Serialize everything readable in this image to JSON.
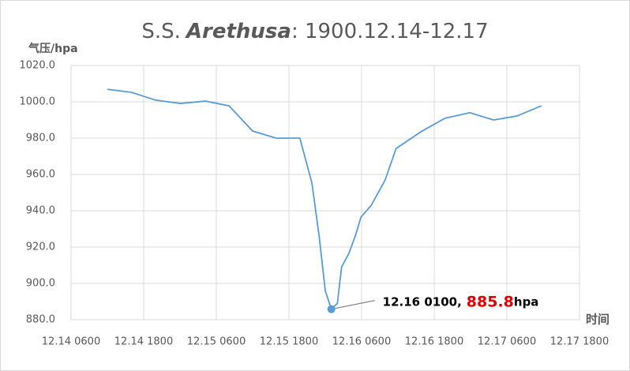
{
  "chart_data": {
    "type": "line",
    "title": {
      "prefix": "S.S.",
      "name": "Arethusa",
      "suffix": ": 1900.12.14-12.17"
    },
    "y_label": "气压/hpa",
    "x_label": "时间",
    "x": [
      12.0,
      16.0,
      20.0,
      24.1,
      28.2,
      32.1,
      36.0,
      39.9,
      43.8,
      45.8,
      47.0,
      48.0,
      49,
      50.0,
      50.7,
      51.9,
      53.0,
      53.9,
      55.6,
      57.9,
      59.7,
      63.8,
      67.8,
      71.9,
      75.8,
      79.7,
      83.7
    ],
    "series": [
      {
        "color": "#5b9bd5",
        "values": [
          1006.9,
          1005.2,
          1000.9,
          999.1,
          1000.4,
          997.8,
          983.9,
          980.0,
          980.0,
          955.2,
          925.7,
          896.0,
          885.8,
          889.0,
          909.0,
          916.5,
          926.5,
          936.5,
          943.0,
          957.0,
          974.3,
          983.5,
          991.0,
          994.0,
          990.0,
          992.2,
          997.8
        ]
      }
    ],
    "annotation": {
      "x": 49,
      "value": 885.8,
      "label": "12.16 0100,",
      "unit": "hpa",
      "color": "#e00000",
      "marker_color": "#5b9bd5"
    },
    "xlim": [
      6,
      90
    ],
    "xticks": [
      {
        "value": 6,
        "label": "12.14 0600"
      },
      {
        "value": 18,
        "label": "12.14 1800"
      },
      {
        "value": 30,
        "label": "12.15 0600"
      },
      {
        "value": 42,
        "label": "12.15 1800"
      },
      {
        "value": 54,
        "label": "12.16 0600"
      },
      {
        "value": 66,
        "label": "12.16 1800"
      },
      {
        "value": 78,
        "label": "12.17 0600"
      },
      {
        "value": 90,
        "label": "12.17 1800"
      }
    ],
    "ylim": [
      880,
      1020
    ],
    "yticks": [
      {
        "value": 880,
        "label": "880.0"
      },
      {
        "value": 900,
        "label": "900.0"
      },
      {
        "value": 920,
        "label": "920.0"
      },
      {
        "value": 940,
        "label": "940.0"
      },
      {
        "value": 960,
        "label": "960.0"
      },
      {
        "value": 980,
        "label": "980.0"
      },
      {
        "value": 1000,
        "label": "1000.0"
      },
      {
        "value": 1020,
        "label": "1020.0"
      }
    ],
    "grid": true
  }
}
